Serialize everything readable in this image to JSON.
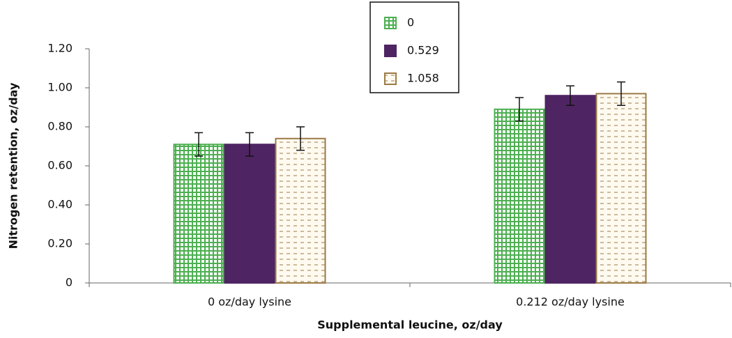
{
  "chart_data": {
    "type": "bar",
    "xlabel": "Supplemental leucine, oz/day",
    "ylabel": "Nitrogen retention, oz/day",
    "categories": [
      "0 oz/day lysine",
      "0.212 oz/day lysine"
    ],
    "series": [
      {
        "name": "0",
        "color": "#4caf50",
        "values": [
          0.71,
          0.89
        ],
        "errors": [
          0.06,
          0.06
        ]
      },
      {
        "name": "0.529",
        "color": "#4f2463",
        "values": [
          0.71,
          0.96
        ],
        "errors": [
          0.06,
          0.05
        ]
      },
      {
        "name": "1.058",
        "color": "#9b7a45",
        "values": [
          0.74,
          0.97
        ],
        "errors": [
          0.06,
          0.06
        ]
      }
    ],
    "ylim": [
      0,
      1.2
    ],
    "yticks": [
      0,
      {
        "value": 0.2,
        "label": "0.20"
      },
      {
        "value": 0.4,
        "label": "0.40"
      },
      {
        "value": 0.6,
        "label": "0.60"
      },
      {
        "value": 0.8,
        "label": "0.80"
      },
      {
        "value": 1.0,
        "label": "1.00"
      },
      {
        "value": 1.2,
        "label": "1.20"
      }
    ],
    "legend": "top"
  }
}
